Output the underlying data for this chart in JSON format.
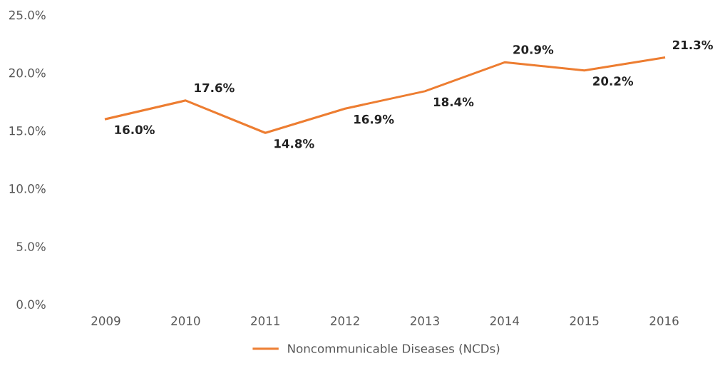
{
  "chart_data": {
    "type": "line",
    "categories": [
      "2009",
      "2010",
      "2011",
      "2012",
      "2013",
      "2014",
      "2015",
      "2016"
    ],
    "series": [
      {
        "name": "Noncommunicable Diseases (NCDs)",
        "color": "#ed7d31",
        "values": [
          16.0,
          17.6,
          14.8,
          16.9,
          18.4,
          20.9,
          20.2,
          21.3
        ],
        "value_labels": [
          "16.0%",
          "17.6%",
          "14.8%",
          "16.9%",
          "18.4%",
          "20.9%",
          "20.2%",
          "21.3%"
        ]
      }
    ],
    "ylim": [
      0,
      25
    ],
    "yticks": [
      {
        "value": 0,
        "label": "0.0%"
      },
      {
        "value": 5,
        "label": "5.0%"
      },
      {
        "value": 10,
        "label": "10.0%"
      },
      {
        "value": 15,
        "label": "15.0%"
      },
      {
        "value": 20,
        "label": "20.0%"
      },
      {
        "value": 25,
        "label": "25.0%"
      }
    ],
    "grid": false,
    "legend": "bottom",
    "marker": "none",
    "line_style": "solid"
  }
}
